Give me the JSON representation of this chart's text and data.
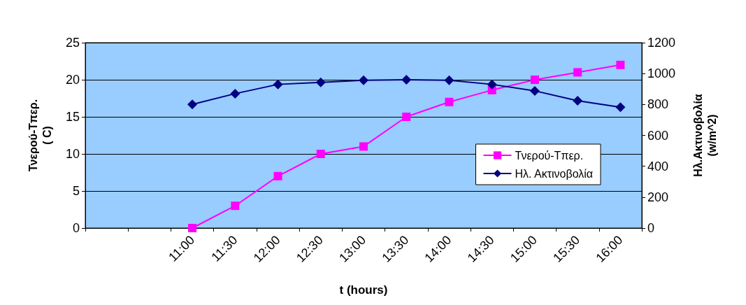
{
  "chart_data": {
    "type": "line",
    "xlabel": "t (hours)",
    "ylabel": "Τνερού-Τπερ.\n( C)",
    "y2label": "Ηλ.Ακτινοβολία\n(w/m^2)",
    "categories": [
      null,
      null,
      "11:00",
      "11:30",
      "12:00",
      "12:30",
      "13:00",
      "13:30",
      "14:00",
      "14:30",
      "15:00",
      "15:30",
      "16:00"
    ],
    "series": [
      {
        "name": "Τνερού-Τπερ.",
        "color": "#ff00ff",
        "marker": "square",
        "values": [
          null,
          null,
          0,
          3,
          7,
          10,
          11,
          15,
          17,
          18.6,
          20,
          21,
          22
        ]
      },
      {
        "name": "Ηλ. Ακτινοβολία",
        "color": "#000080",
        "marker": "diamond",
        "axis": "y2",
        "values": [
          null,
          null,
          800,
          870,
          930,
          943,
          957,
          960,
          957,
          930,
          888,
          824,
          782
        ]
      }
    ],
    "ylim": [
      0,
      25
    ],
    "yticks": [
      0,
      5,
      10,
      15,
      20,
      25
    ],
    "y2lim": [
      0,
      1200
    ],
    "y2ticks": [
      0,
      200,
      400,
      600,
      800,
      1000,
      1200
    ],
    "grid": "y",
    "legend": "right"
  }
}
